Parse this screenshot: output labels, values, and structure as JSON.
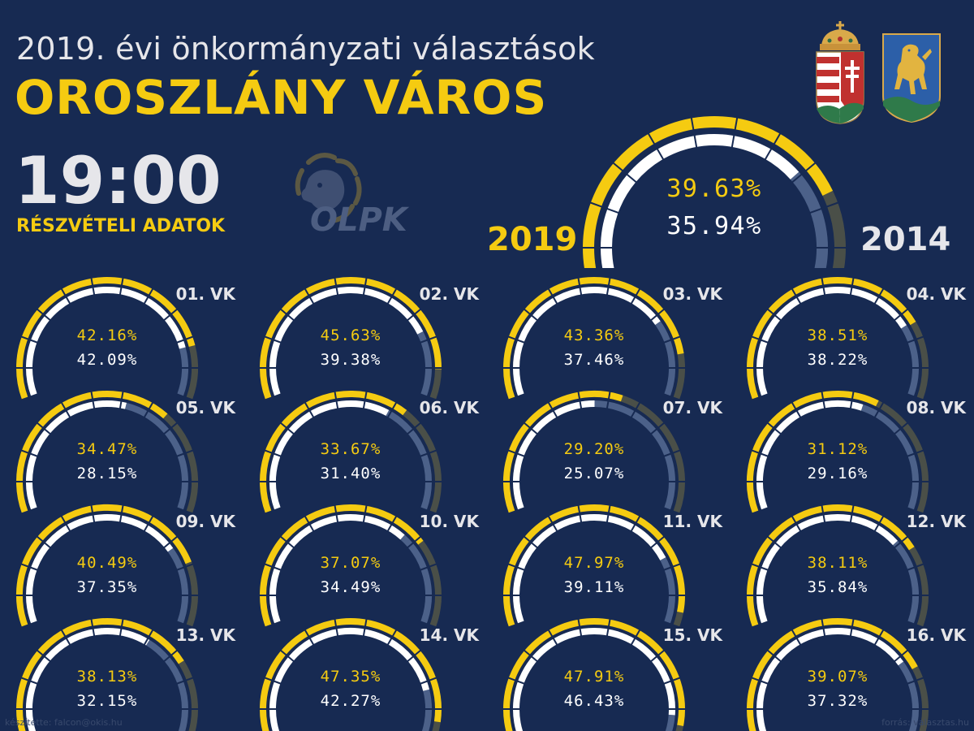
{
  "header": {
    "subtitle": "2019. évi önkormányzati választások",
    "city": "OROSZLÁNY VÁROS",
    "time": "19:00",
    "label": "RÉSZVÉTELI ADATOK",
    "logo_text": "OLPK"
  },
  "colors": {
    "background": "#172a52",
    "current_year": "#f5cb11",
    "previous_year": "#ffffff",
    "remaining_current": "#4a4f48",
    "remaining_previous": "#4c6189",
    "text_light": "#e6e6ea"
  },
  "chart_data": {
    "type": "gauge",
    "max": 100,
    "years": [
      "2019",
      "2014"
    ],
    "total": {
      "current": 39.63,
      "previous": 35.94,
      "current_label": "39.63%",
      "previous_label": "35.94%"
    },
    "districts": [
      {
        "name": "01. VK",
        "current": 42.16,
        "previous": 42.09,
        "current_label": "42.16%",
        "previous_label": "42.09%"
      },
      {
        "name": "02. VK",
        "current": 45.63,
        "previous": 39.38,
        "current_label": "45.63%",
        "previous_label": "39.38%"
      },
      {
        "name": "03. VK",
        "current": 43.36,
        "previous": 37.46,
        "current_label": "43.36%",
        "previous_label": "37.46%"
      },
      {
        "name": "04. VK",
        "current": 38.51,
        "previous": 38.22,
        "current_label": "38.51%",
        "previous_label": "38.22%"
      },
      {
        "name": "05. VK",
        "current": 34.47,
        "previous": 28.15,
        "current_label": "34.47%",
        "previous_label": "28.15%"
      },
      {
        "name": "06. VK",
        "current": 33.67,
        "previous": 31.4,
        "current_label": "33.67%",
        "previous_label": "31.40%"
      },
      {
        "name": "07. VK",
        "current": 29.2,
        "previous": 25.07,
        "current_label": "29.20%",
        "previous_label": "25.07%"
      },
      {
        "name": "08. VK",
        "current": 31.12,
        "previous": 29.16,
        "current_label": "31.12%",
        "previous_label": "29.16%"
      },
      {
        "name": "09. VK",
        "current": 40.49,
        "previous": 37.35,
        "current_label": "40.49%",
        "previous_label": "37.35%"
      },
      {
        "name": "10. VK",
        "current": 37.07,
        "previous": 34.49,
        "current_label": "37.07%",
        "previous_label": "34.49%"
      },
      {
        "name": "11. VK",
        "current": 47.97,
        "previous": 39.11,
        "current_label": "47.97%",
        "previous_label": "39.11%"
      },
      {
        "name": "12. VK",
        "current": 38.11,
        "previous": 35.84,
        "current_label": "38.11%",
        "previous_label": "35.84%"
      },
      {
        "name": "13. VK",
        "current": 38.13,
        "previous": 32.15,
        "current_label": "38.13%",
        "previous_label": "32.15%"
      },
      {
        "name": "14. VK",
        "current": 47.35,
        "previous": 42.27,
        "current_label": "47.35%",
        "previous_label": "42.27%"
      },
      {
        "name": "15. VK",
        "current": 47.91,
        "previous": 46.43,
        "current_label": "47.91%",
        "previous_label": "46.43%"
      },
      {
        "name": "16. VK",
        "current": 39.07,
        "previous": 37.32,
        "current_label": "39.07%",
        "previous_label": "37.32%"
      }
    ]
  },
  "footer": {
    "left": "készítette: falcon@okis.hu",
    "right": "forrás: valasztas.hu"
  },
  "icons": {
    "coat1": "hungary-coat-of-arms-icon",
    "coat2": "oroszlany-coat-of-arms-icon",
    "logo": "lion-logo-icon"
  }
}
